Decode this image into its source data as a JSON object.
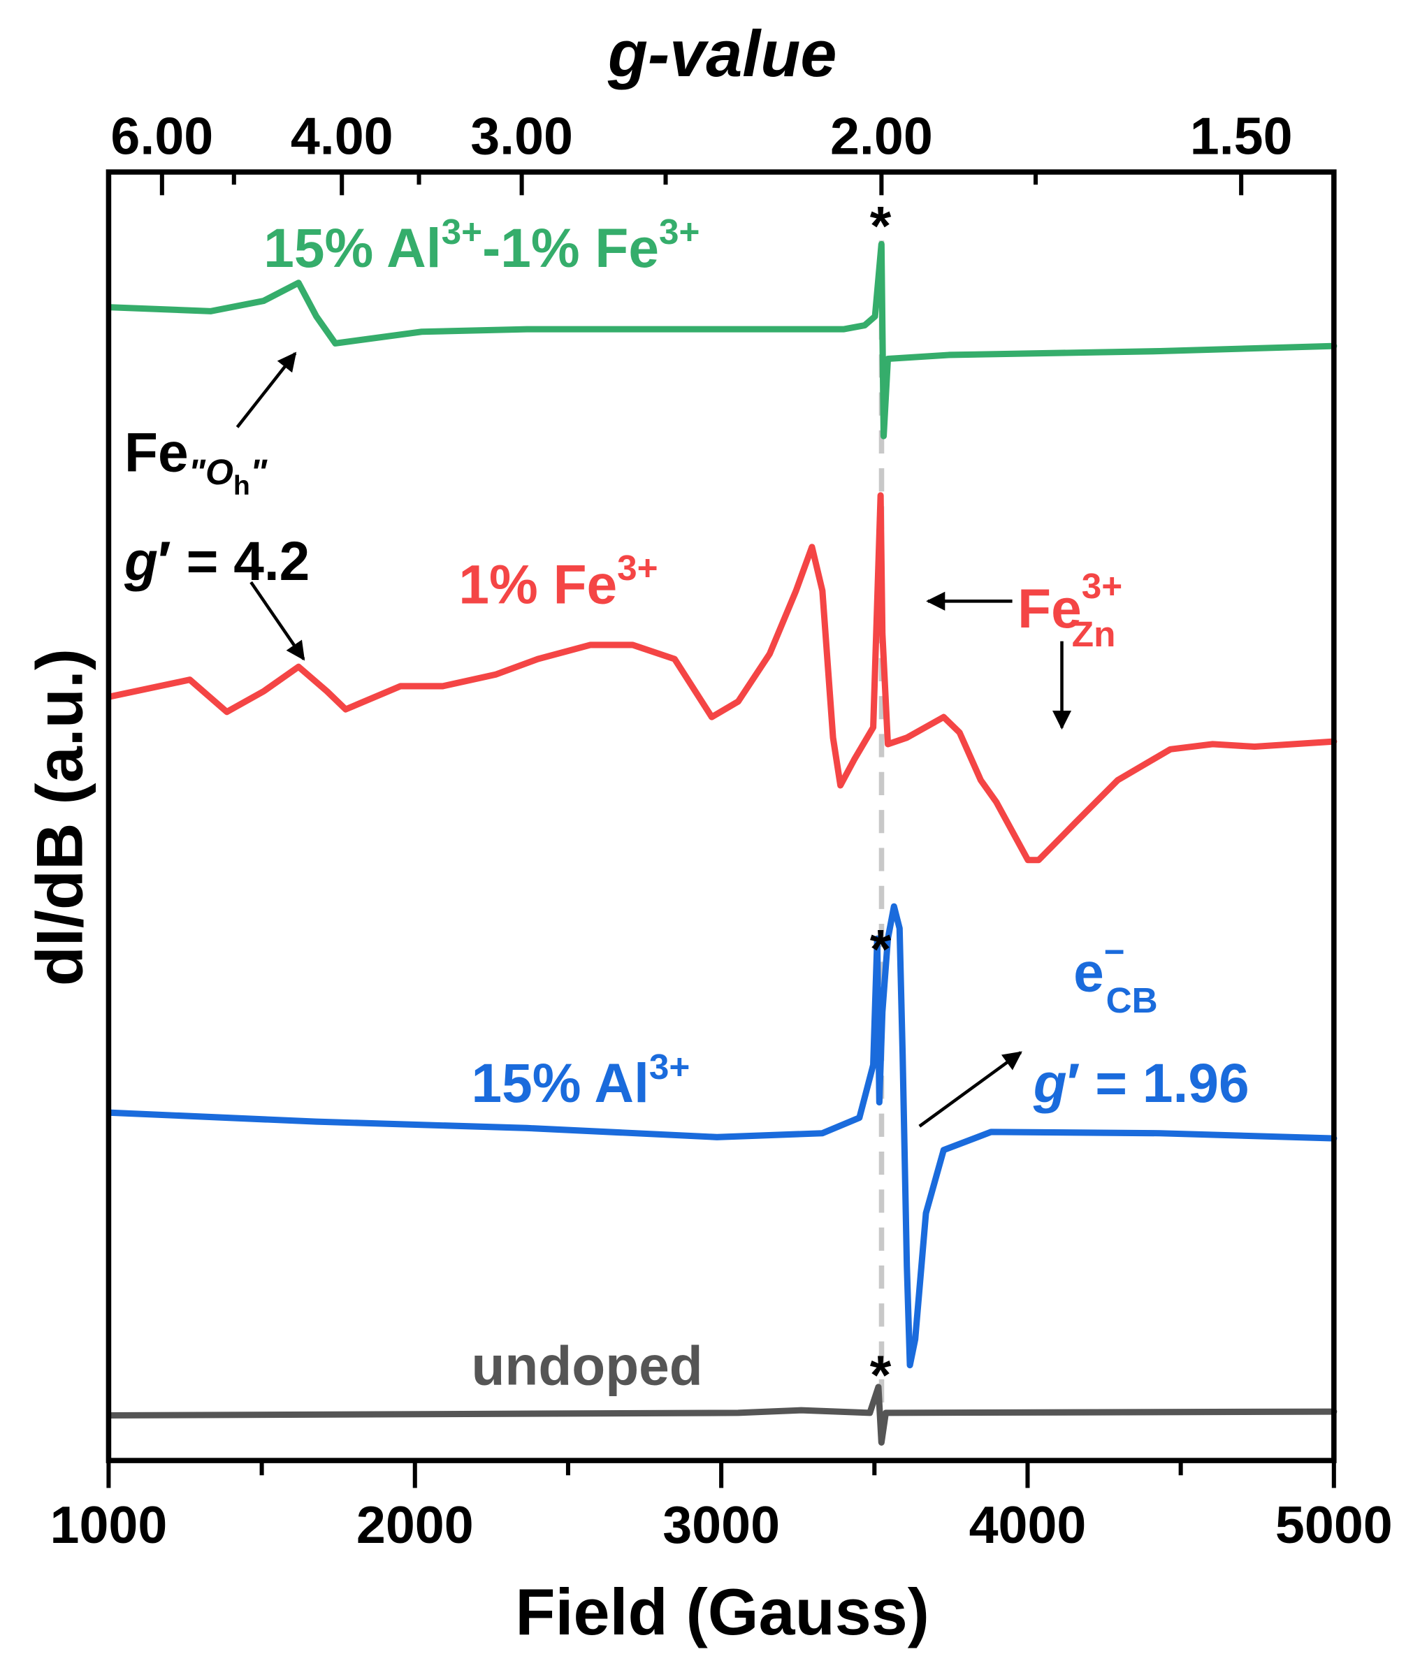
{
  "chart_data": {
    "type": "line",
    "xlabel": "Field (Gauss)",
    "ylabel": "dI/dB (a.u.)",
    "top_xlabel": "g-value",
    "xlim": [
      1000,
      5000
    ],
    "ylim": [
      0,
      100
    ],
    "x_ticks": [
      "1000",
      "2000",
      "3000",
      "4000",
      "5000"
    ],
    "x_tick_values": [
      1000,
      2000,
      3000,
      4000,
      5000
    ],
    "x_minor_ticks": [
      1500,
      2500,
      3500,
      4500
    ],
    "top_ticks": [
      "6.00",
      "4.00",
      "3.00",
      "2.00",
      "1.50"
    ],
    "top_tick_values": [
      6.0,
      4.0,
      3.0,
      2.0,
      1.5
    ],
    "top_minor_ticks": [
      5.0,
      3.5,
      2.5,
      1.75
    ],
    "g_field_constant": 7046,
    "grid": false,
    "y_ticks_shown": false,
    "series": [
      {
        "color": "#35ad6b",
        "x": [
          1007,
          1334,
          1506,
          1620,
          1678,
          1740,
          2022,
          2366,
          3399,
          3468,
          3502,
          3523,
          3530,
          3544,
          3743,
          4432,
          5000
        ],
        "y": [
          89.5,
          89.2,
          90.0,
          91.4,
          88.8,
          86.7,
          87.6,
          87.8,
          87.8,
          88.1,
          88.8,
          94.4,
          79.5,
          85.5,
          85.8,
          86.1,
          86.5
        ]
      },
      {
        "color": "#f44545",
        "x": [
          1007,
          1265,
          1386,
          1506,
          1620,
          1713,
          1774,
          1953,
          2091,
          2263,
          2401,
          2573,
          2711,
          2848,
          2969,
          3055,
          3158,
          3244,
          3296,
          3330,
          3365,
          3389,
          3434,
          3496,
          3520,
          3526,
          3544,
          3606,
          3726,
          3778,
          3847,
          3898,
          4001,
          4036,
          4156,
          4294,
          4466,
          4604,
          4741,
          5000
        ],
        "y": [
          59.3,
          60.6,
          58.1,
          59.7,
          61.6,
          59.7,
          58.3,
          60.1,
          60.1,
          61.0,
          62.2,
          63.3,
          63.3,
          62.2,
          57.7,
          58.9,
          62.6,
          67.5,
          70.9,
          67.5,
          56.1,
          52.4,
          54.4,
          56.9,
          74.9,
          64.2,
          55.6,
          56.1,
          57.7,
          56.5,
          52.8,
          51.1,
          46.6,
          46.6,
          49.5,
          52.8,
          55.2,
          55.6,
          55.4,
          55.8
        ]
      },
      {
        "color": "#1a6bdc",
        "x": [
          1007,
          1678,
          2366,
          2986,
          3330,
          3451,
          3496,
          3509,
          3516,
          3526,
          3544,
          3564,
          3582,
          3592,
          3606,
          3616,
          3633,
          3668,
          3726,
          3881,
          4432,
          5000
        ],
        "y": [
          27.0,
          26.3,
          25.8,
          25.1,
          25.4,
          26.6,
          30.7,
          40.5,
          27.8,
          34.8,
          40.5,
          43.0,
          41.3,
          31.5,
          15.1,
          7.4,
          9.4,
          19.2,
          24.1,
          25.5,
          25.4,
          25.0
        ]
      },
      {
        "color": "#555555",
        "x": [
          1007,
          3055,
          3261,
          3485,
          3513,
          3523,
          3537,
          5000
        ],
        "y": [
          3.5,
          3.7,
          3.9,
          3.7,
          5.7,
          1.4,
          3.7,
          3.8
        ]
      }
    ],
    "annotations": {
      "green_label": {
        "main": "15% Al",
        "sup1": "3+",
        "mid": "-1% Fe",
        "sup2": "3+"
      },
      "fe_oh": {
        "main": "Fe",
        "q1": "\"",
        "o": "O",
        "h": "h",
        "q2": "\""
      },
      "g42": {
        "g": "g",
        "rest": "′ = 4.2"
      },
      "red_label": {
        "main": "1% Fe",
        "sup": "3+"
      },
      "fe_zn": {
        "main": "Fe",
        "sup": "3+",
        "sub": "Zn"
      },
      "blue_label": {
        "main": "15% Al",
        "sup": "3+"
      },
      "ecb": {
        "main": "e",
        "sup": "−",
        "sub": "CB"
      },
      "g196": {
        "g": "g",
        "rest": "′ = 1.96"
      },
      "gray_label": "undoped",
      "asterisk": "*"
    }
  }
}
